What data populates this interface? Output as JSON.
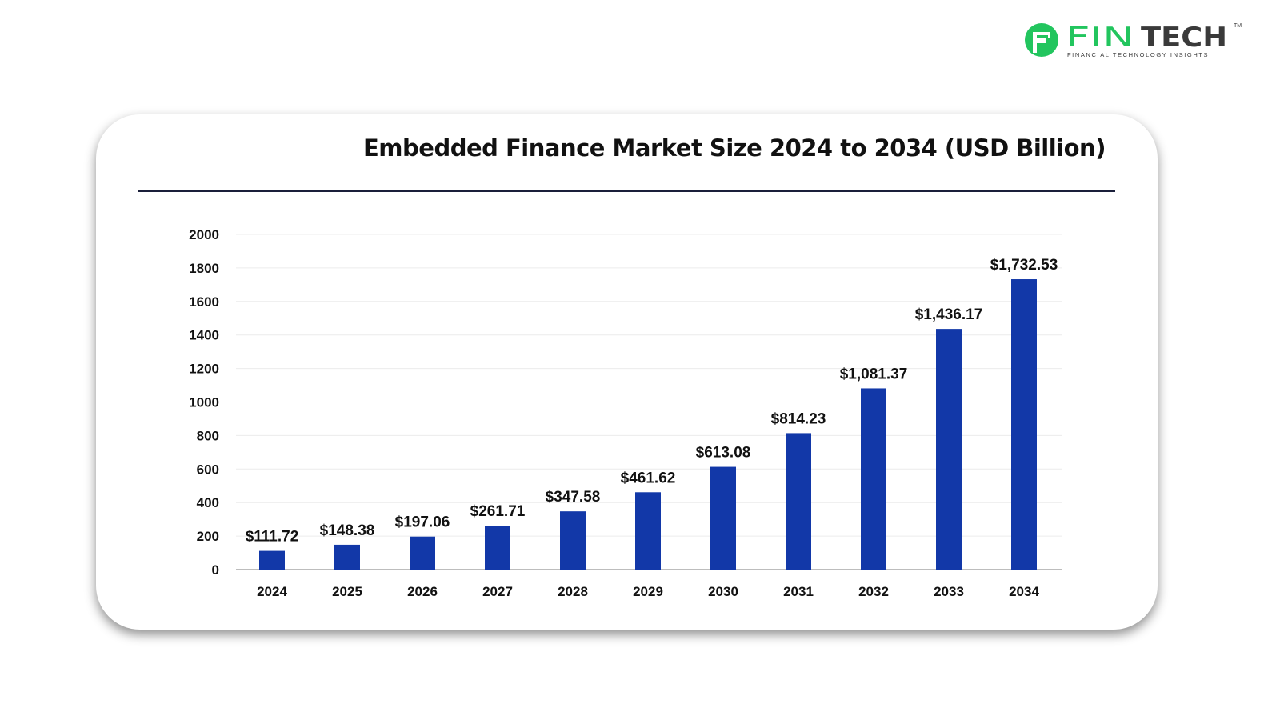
{
  "logo": {
    "brand_part1": "FIN",
    "brand_part2": "TECH",
    "tagline": "FINANCIAL TECHNOLOGY INSIGHTS",
    "trademark": "TM",
    "colors": {
      "green": "#22c55e",
      "dark": "#3a3a3a"
    }
  },
  "chart_data": {
    "type": "bar",
    "title": "Embedded Finance Market Size 2024 to 2034 (USD Billion)",
    "xlabel": "",
    "ylabel": "",
    "categories": [
      "2024",
      "2025",
      "2026",
      "2027",
      "2028",
      "2029",
      "2030",
      "2031",
      "2032",
      "2033",
      "2034"
    ],
    "values": [
      111.72,
      148.38,
      197.06,
      261.71,
      347.58,
      461.62,
      613.08,
      814.23,
      1081.37,
      1436.17,
      1732.53
    ],
    "data_labels": [
      "$111.72",
      "$148.38",
      "$197.06",
      "$261.71",
      "$347.58",
      "$461.62",
      "$613.08",
      "$814.23",
      "$1,081.37",
      "$1,436.17",
      "$1,732.53"
    ],
    "ylim": [
      0,
      2000
    ],
    "yticks": [
      0,
      200,
      400,
      600,
      800,
      1000,
      1200,
      1400,
      1600,
      1800,
      2000
    ],
    "grid": true,
    "legend": "none",
    "bar_color": "#1238a8"
  }
}
